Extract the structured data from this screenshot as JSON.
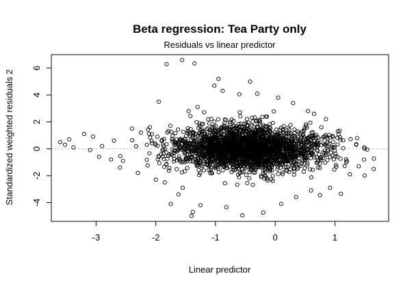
{
  "chart_data": {
    "type": "scatter",
    "title": "Beta regression: Tea Party only",
    "subtitle": "Residuals vs linear predictor",
    "xlabel": "Linear predictor",
    "ylabel": "Standardized weighted residuals 2",
    "xlim": [
      -3.75,
      1.9
    ],
    "ylim": [
      -5.4,
      7.0
    ],
    "x_ticks": [
      -3,
      -2,
      -1,
      0,
      1
    ],
    "y_ticks": [
      -4,
      -2,
      0,
      2,
      4,
      6
    ],
    "reference_line": {
      "y": 0,
      "style": "dotted",
      "color": "#aaaaaa"
    },
    "grid": false,
    "marker": "open-circle",
    "points": [
      [
        -1.56,
        6.6
      ],
      [
        -1.82,
        6.3
      ],
      [
        -1.35,
        6.35
      ],
      [
        -0.95,
        5.2
      ],
      [
        -1.02,
        4.7
      ],
      [
        -0.42,
        5.0
      ],
      [
        -0.88,
        4.3
      ],
      [
        -1.95,
        3.5
      ],
      [
        -0.6,
        4.05
      ],
      [
        -0.3,
        4.1
      ],
      [
        0.05,
        3.8
      ],
      [
        0.3,
        3.4
      ],
      [
        -1.3,
        3.1
      ],
      [
        -1.45,
        2.8
      ],
      [
        0.55,
        2.8
      ],
      [
        -3.6,
        0.5
      ],
      [
        -3.52,
        0.3
      ],
      [
        -3.45,
        0.7
      ],
      [
        -3.38,
        0.1
      ],
      [
        -3.2,
        1.1
      ],
      [
        -3.1,
        -0.1
      ],
      [
        -2.95,
        -0.6
      ],
      [
        -3.05,
        0.9
      ],
      [
        -2.7,
        0.6
      ],
      [
        -2.55,
        -0.9
      ],
      [
        -2.4,
        1.5
      ],
      [
        -2.25,
        1.2
      ],
      [
        -2.1,
        1.6
      ],
      [
        -2.6,
        -1.4
      ],
      [
        -2.3,
        -1.8
      ],
      [
        -2.0,
        -2.3
      ],
      [
        -1.85,
        -2.5
      ],
      [
        -1.55,
        -2.9
      ],
      [
        -1.62,
        -3.4
      ],
      [
        -1.75,
        -4.1
      ],
      [
        -1.38,
        -4.7
      ],
      [
        -1.25,
        -4.2
      ],
      [
        -1.4,
        -5.0
      ],
      [
        -0.82,
        -4.35
      ],
      [
        -0.55,
        -4.95
      ],
      [
        -0.2,
        -4.75
      ],
      [
        0.1,
        -4.1
      ],
      [
        0.35,
        -3.6
      ],
      [
        0.6,
        -3.1
      ],
      [
        0.75,
        -3.45
      ],
      [
        0.92,
        -2.9
      ],
      [
        1.1,
        -3.35
      ],
      [
        1.25,
        -1.9
      ],
      [
        1.5,
        -2.0
      ],
      [
        1.65,
        -1.5
      ],
      [
        1.4,
        -1.3
      ],
      [
        1.2,
        -0.9
      ],
      [
        1.5,
        0.0
      ],
      [
        1.05,
        1.3
      ],
      [
        0.85,
        2.2
      ],
      [
        0.65,
        2.6
      ],
      [
        -2.75,
        -0.8
      ],
      [
        -2.9,
        0.2
      ],
      [
        -1.95,
        -0.6
      ],
      [
        -2.15,
        0.3
      ]
    ],
    "dense_cloud": {
      "x_mean": -0.45,
      "y_mean": 0.0,
      "x_sd": 0.62,
      "y_sd": 0.85,
      "count": 2600
    }
  }
}
